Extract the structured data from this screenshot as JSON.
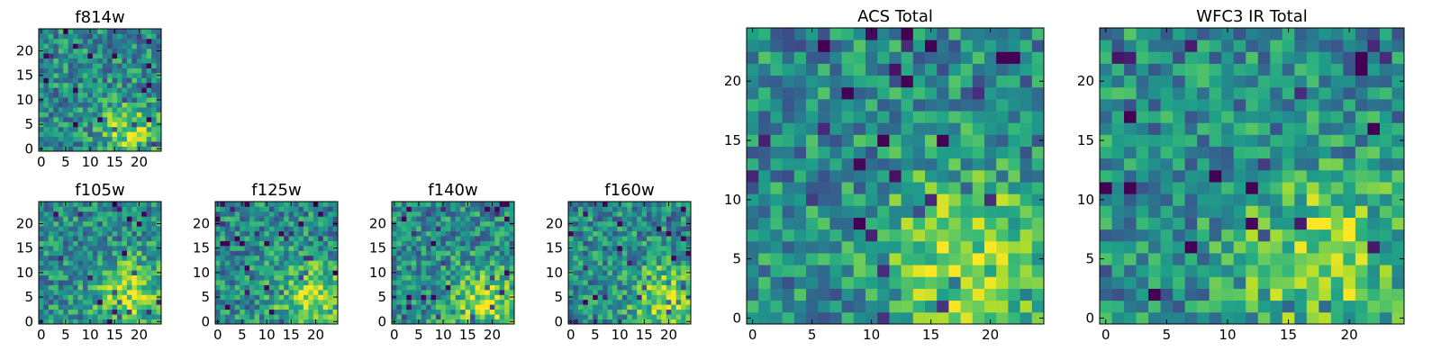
{
  "chart_data": [
    {
      "type": "heatmap",
      "id": "p-f814w",
      "title": "f814w",
      "grid": [
        25,
        25
      ],
      "colormap": "viridis",
      "xlim": [
        -0.5,
        24.5
      ],
      "ylim": [
        -0.5,
        24.5
      ],
      "xticks": [
        0,
        5,
        10,
        15,
        20
      ],
      "xtick_labels": [
        "0",
        "5",
        "10",
        "15",
        "20"
      ],
      "yticks": [
        0,
        5,
        10,
        15,
        20
      ],
      "ytick_labels": [
        "0",
        "5",
        "10",
        "15",
        "20"
      ],
      "bright_region": {
        "x": 18,
        "y": 4,
        "radius": 4
      }
    },
    {
      "type": "heatmap",
      "id": "p-f105w",
      "title": "f105w",
      "grid": [
        25,
        25
      ],
      "colormap": "viridis",
      "xlim": [
        -0.5,
        24.5
      ],
      "ylim": [
        -0.5,
        24.5
      ],
      "xticks": [
        0,
        5,
        10,
        15,
        20
      ],
      "xtick_labels": [
        "0",
        "5",
        "10",
        "15",
        "20"
      ],
      "yticks": [
        0,
        5,
        10,
        15,
        20
      ],
      "ytick_labels": [
        "0",
        "5",
        "10",
        "15",
        "20"
      ],
      "bright_region": {
        "x": 18,
        "y": 6,
        "radius": 5
      }
    },
    {
      "type": "heatmap",
      "id": "p-f125w",
      "title": "f125w",
      "grid": [
        25,
        25
      ],
      "colormap": "viridis",
      "xlim": [
        -0.5,
        24.5
      ],
      "ylim": [
        -0.5,
        24.5
      ],
      "xticks": [
        0,
        5,
        10,
        15,
        20
      ],
      "xtick_labels": [
        "0",
        "5",
        "10",
        "15",
        "20"
      ],
      "yticks": [
        0,
        5,
        10,
        15,
        20
      ],
      "ytick_labels": [
        "0",
        "5",
        "10",
        "15",
        "20"
      ],
      "bright_region": {
        "x": 19,
        "y": 5,
        "radius": 5
      }
    },
    {
      "type": "heatmap",
      "id": "p-f140w",
      "title": "f140w",
      "grid": [
        25,
        25
      ],
      "colormap": "viridis",
      "xlim": [
        -0.5,
        24.5
      ],
      "ylim": [
        -0.5,
        24.5
      ],
      "xticks": [
        0,
        5,
        10,
        15,
        20
      ],
      "xtick_labels": [
        "0",
        "5",
        "10",
        "15",
        "20"
      ],
      "yticks": [
        0,
        5,
        10,
        15,
        20
      ],
      "ytick_labels": [
        "0",
        "5",
        "10",
        "15",
        "20"
      ],
      "bright_region": {
        "x": 19,
        "y": 4,
        "radius": 5
      }
    },
    {
      "type": "heatmap",
      "id": "p-f160w",
      "title": "f160w",
      "grid": [
        25,
        25
      ],
      "colormap": "viridis",
      "xlim": [
        -0.5,
        24.5
      ],
      "ylim": [
        -0.5,
        24.5
      ],
      "xticks": [
        0,
        5,
        10,
        15,
        20
      ],
      "xtick_labels": [
        "0",
        "5",
        "10",
        "15",
        "20"
      ],
      "yticks": [
        0,
        5,
        10,
        15,
        20
      ],
      "ytick_labels": [
        "0",
        "5",
        "10",
        "15",
        "20"
      ],
      "bright_region": {
        "x": 19,
        "y": 5,
        "radius": 5
      }
    },
    {
      "type": "heatmap",
      "id": "p-acs",
      "title": "ACS Total",
      "grid": [
        25,
        25
      ],
      "colormap": "viridis",
      "xlim": [
        -0.5,
        24.5
      ],
      "ylim": [
        -0.5,
        24.5
      ],
      "xticks": [
        0,
        5,
        10,
        15,
        20
      ],
      "xtick_labels": [
        "0",
        "5",
        "10",
        "15",
        "20"
      ],
      "yticks": [
        0,
        5,
        10,
        15,
        20
      ],
      "ytick_labels": [
        "0",
        "5",
        "10",
        "15",
        "20"
      ],
      "bright_region": {
        "x": 18,
        "y": 5,
        "radius": 5
      }
    },
    {
      "type": "heatmap",
      "id": "p-wfc3",
      "title": "WFC3 IR Total",
      "grid": [
        25,
        25
      ],
      "colormap": "viridis",
      "xlim": [
        -0.5,
        24.5
      ],
      "ylim": [
        -0.5,
        24.5
      ],
      "xticks": [
        0,
        5,
        10,
        15,
        20
      ],
      "xtick_labels": [
        "0",
        "5",
        "10",
        "15",
        "20"
      ],
      "yticks": [
        0,
        5,
        10,
        15,
        20
      ],
      "ytick_labels": [
        "0",
        "5",
        "10",
        "15",
        "20"
      ],
      "bright_region": {
        "x": 18,
        "y": 5,
        "radius": 5
      }
    }
  ]
}
